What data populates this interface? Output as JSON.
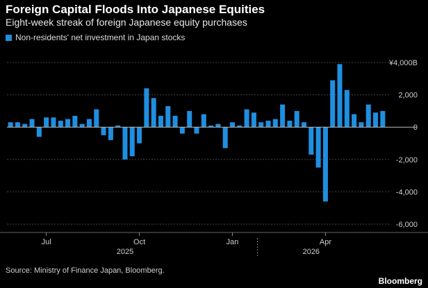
{
  "title": "Foreign Capital Floods Into Japanese Equities",
  "subtitle": "Eight-week streak of foreign Japanese equity purchases",
  "source": "Source: Ministry of Finance Japan, Bloomberg.",
  "brand": "Bloomberg",
  "colors": {
    "background": "#000000",
    "bar": "#1f8fe0",
    "grid": "#444444",
    "text": "#cfcfcf"
  },
  "chart_data": {
    "type": "bar",
    "legend": {
      "label": "Non-residents' net investment in Japan stocks",
      "position": "top-left"
    },
    "ylim": [
      -6000,
      4000
    ],
    "y_ticks": [
      {
        "value": 4000,
        "label": "¥4,000B"
      },
      {
        "value": 2000,
        "label": "2,000"
      },
      {
        "value": 0,
        "label": "0"
      },
      {
        "value": -2000,
        "label": "-2,000"
      },
      {
        "value": -4000,
        "label": "-4,000"
      },
      {
        "value": -6000,
        "label": "-6,000"
      }
    ],
    "grid": "horizontal dashed",
    "x_ticks": [
      {
        "index": 5,
        "label": "Jul"
      },
      {
        "index": 18,
        "label": "Oct"
      },
      {
        "index": 31,
        "label": "Jan"
      },
      {
        "index": 44,
        "label": "Apr"
      }
    ],
    "year_labels": [
      {
        "index": 16,
        "label": "2025"
      },
      {
        "index": 42,
        "label": "2026"
      }
    ],
    "year_separator_index": 35,
    "values": [
      300,
      300,
      200,
      500,
      -600,
      600,
      600,
      400,
      500,
      700,
      200,
      500,
      1100,
      -500,
      -800,
      100,
      -2000,
      -1800,
      -1000,
      2400,
      1800,
      700,
      1300,
      700,
      -400,
      1000,
      -400,
      800,
      100,
      200,
      -1300,
      300,
      100,
      1100,
      900,
      300,
      400,
      500,
      1400,
      400,
      1000,
      300,
      -1700,
      -2500,
      -4600,
      2900,
      3900,
      2300,
      800,
      300,
      1400,
      900,
      1000
    ]
  }
}
